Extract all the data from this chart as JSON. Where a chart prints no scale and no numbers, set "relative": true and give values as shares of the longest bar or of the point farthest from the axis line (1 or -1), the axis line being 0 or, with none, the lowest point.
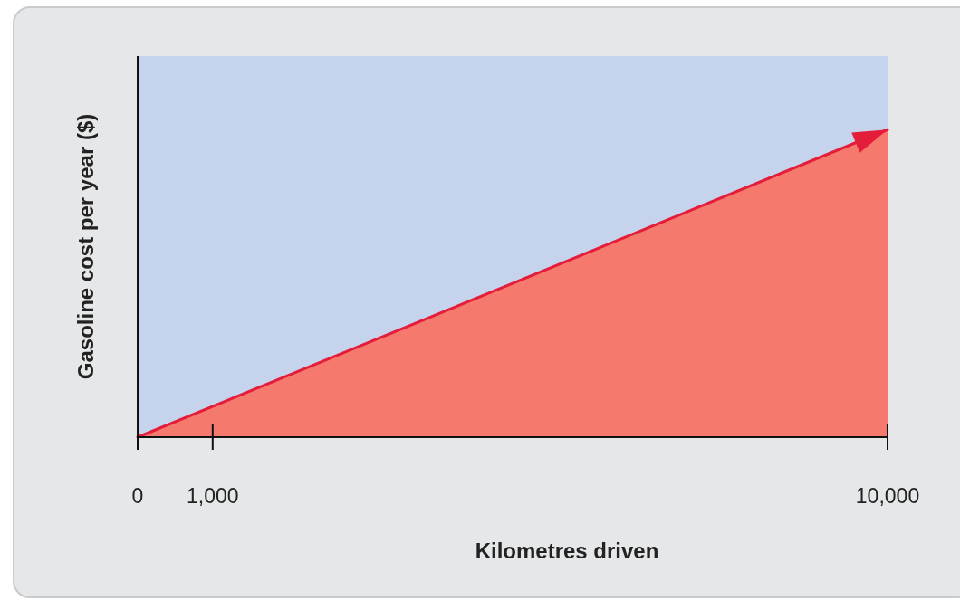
{
  "chart_data": {
    "type": "area",
    "xlabel": "Kilometres driven",
    "ylabel": "Gasoline cost per year ($)",
    "relative": true,
    "x": [
      0,
      10000
    ],
    "xlim": [
      0,
      10000
    ],
    "xticks": [
      0,
      {
        "value": 1000,
        "label": "1,000"
      },
      {
        "value": 10000,
        "label": "10,000"
      }
    ],
    "grid": false,
    "series": [
      {
        "color": "#e41e3a",
        "values": [
          0,
          1
        ]
      }
    ]
  }
}
